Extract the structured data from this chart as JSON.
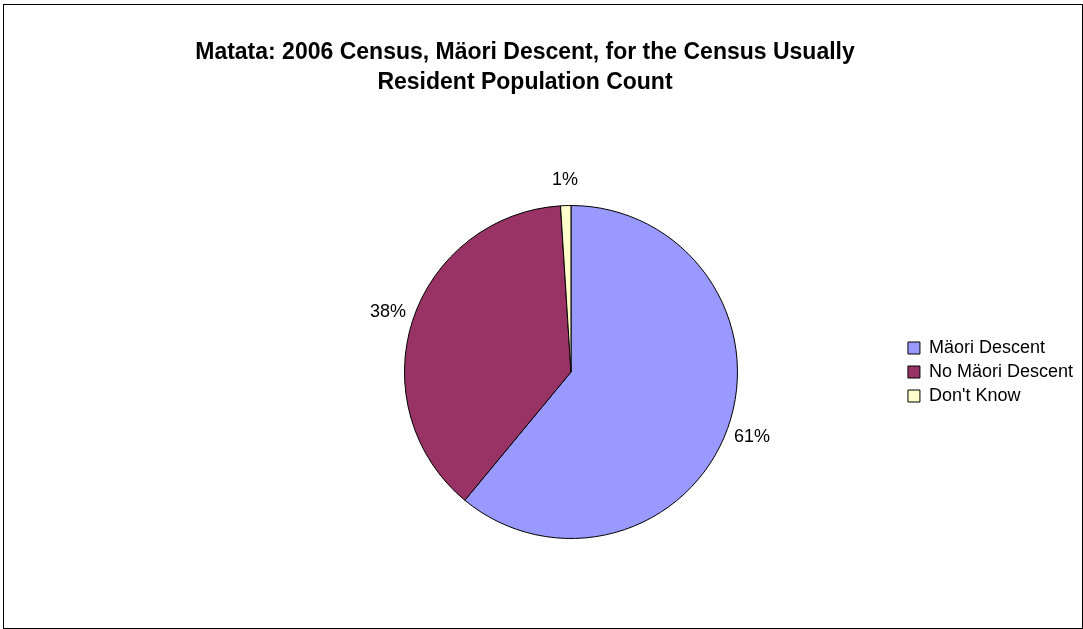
{
  "chart_data": {
    "type": "pie",
    "title": "Matata: 2006 Census, Mäori Descent, for the Census Usually Resident Population Count",
    "categories": [
      "Mäori Descent",
      "No Mäori Descent",
      "Don't Know"
    ],
    "values": [
      61,
      38,
      1
    ],
    "value_labels": [
      "61%",
      "38%",
      "1%"
    ],
    "colors": [
      "#9999ff",
      "#993366",
      "#ffffcc"
    ],
    "legend": "right"
  }
}
